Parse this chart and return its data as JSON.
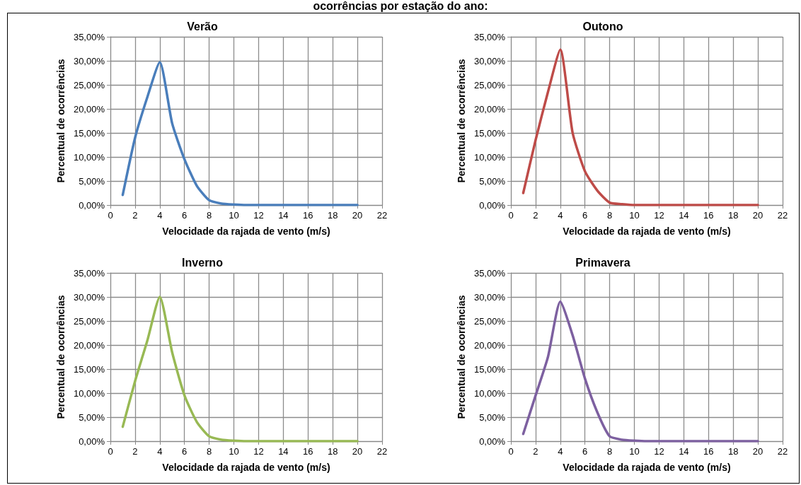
{
  "chart_data": [
    {
      "type": "line",
      "title": "Verão",
      "annotations": [
        "ocorrências por estação do ano:"
      ],
      "xlabel": "Velocidade da rajada de vento (m/s)",
      "ylabel": "Percentual de ocorrências",
      "x": [
        1,
        2,
        3,
        4,
        5,
        6,
        7,
        8,
        9,
        10,
        11,
        12,
        13,
        14,
        15,
        16,
        17,
        18,
        19,
        20
      ],
      "xlim": [
        0,
        22
      ],
      "xticks": [
        0,
        2,
        4,
        6,
        8,
        10,
        12,
        14,
        16,
        18,
        20,
        22
      ],
      "ylim": [
        0,
        35
      ],
      "yticks": [
        {
          "value": 0,
          "label": "0,00%"
        },
        {
          "value": 5,
          "label": "5,00%"
        },
        {
          "value": 10,
          "label": "10,00%"
        },
        {
          "value": 15,
          "label": "15,00%"
        },
        {
          "value": 20,
          "label": "20,00%"
        },
        {
          "value": 25,
          "label": "25,00%"
        },
        {
          "value": 30,
          "label": "30,00%"
        },
        {
          "value": 35,
          "label": "35,00%"
        }
      ],
      "grid": true,
      "marker": "none",
      "line_style": "solid",
      "series": [
        {
          "color": "#4a7ebb",
          "values": [
            2.1,
            14,
            22.5,
            29.7,
            17,
            9.5,
            4,
            1,
            0.3,
            0.1,
            0,
            0,
            0,
            0,
            0,
            0,
            0,
            0,
            0,
            0
          ]
        }
      ]
    },
    {
      "type": "line",
      "title": "Outono",
      "xlabel": "Velocidade da rajada de vento (m/s)",
      "ylabel": "Percentual de ocorrências",
      "x": [
        1,
        2,
        3,
        4,
        5,
        6,
        7,
        8,
        9,
        10,
        11,
        12,
        13,
        14,
        15,
        16,
        17,
        18,
        19,
        20
      ],
      "xlim": [
        0,
        22
      ],
      "xticks": [
        0,
        2,
        4,
        6,
        8,
        10,
        12,
        14,
        16,
        18,
        20,
        22
      ],
      "ylim": [
        0,
        35
      ],
      "yticks": [
        {
          "value": 0,
          "label": "0,00%"
        },
        {
          "value": 5,
          "label": "5,00%"
        },
        {
          "value": 10,
          "label": "10,00%"
        },
        {
          "value": 15,
          "label": "15,00%"
        },
        {
          "value": 20,
          "label": "20,00%"
        },
        {
          "value": 25,
          "label": "25,00%"
        },
        {
          "value": 30,
          "label": "30,00%"
        },
        {
          "value": 35,
          "label": "35,00%"
        }
      ],
      "grid": true,
      "marker": "none",
      "line_style": "solid",
      "series": [
        {
          "color": "#be4b48",
          "values": [
            2.5,
            13.5,
            23.5,
            32.3,
            15,
            7,
            3,
            0.5,
            0.2,
            0,
            0,
            0,
            0,
            0,
            0,
            0,
            0,
            0,
            0,
            0
          ]
        }
      ]
    },
    {
      "type": "line",
      "title": "Inverno",
      "xlabel": "Velocidade da rajada de vento (m/s)",
      "ylabel": "Percentual de ocorrências",
      "x": [
        1,
        2,
        3,
        4,
        5,
        6,
        7,
        8,
        9,
        10,
        11,
        12,
        13,
        14,
        15,
        16,
        17,
        18,
        19,
        20
      ],
      "xlim": [
        0,
        22
      ],
      "xticks": [
        0,
        2,
        4,
        6,
        8,
        10,
        12,
        14,
        16,
        18,
        20,
        22
      ],
      "ylim": [
        0,
        35
      ],
      "yticks": [
        {
          "value": 0,
          "label": "0,00%"
        },
        {
          "value": 5,
          "label": "5,00%"
        },
        {
          "value": 10,
          "label": "10,00%"
        },
        {
          "value": 15,
          "label": "15,00%"
        },
        {
          "value": 20,
          "label": "20,00%"
        },
        {
          "value": 25,
          "label": "25,00%"
        },
        {
          "value": 30,
          "label": "30,00%"
        },
        {
          "value": 35,
          "label": "35,00%"
        }
      ],
      "grid": true,
      "marker": "none",
      "line_style": "solid",
      "series": [
        {
          "color": "#98b954",
          "values": [
            3,
            12.5,
            21,
            30,
            18.5,
            9.5,
            4,
            1,
            0.3,
            0.1,
            0,
            0,
            0,
            0,
            0,
            0,
            0,
            0,
            0,
            0
          ]
        }
      ]
    },
    {
      "type": "line",
      "title": "Primavera",
      "xlabel": "Velocidade da rajada de vento (m/s)",
      "ylabel": "Percentual de ocorrências",
      "x": [
        1,
        2,
        3,
        4,
        5,
        6,
        7,
        8,
        9,
        10,
        11,
        12,
        13,
        14,
        15,
        16,
        17,
        18,
        19,
        20
      ],
      "xlim": [
        0,
        22
      ],
      "xticks": [
        0,
        2,
        4,
        6,
        8,
        10,
        12,
        14,
        16,
        18,
        20,
        22
      ],
      "ylim": [
        0,
        35
      ],
      "yticks": [
        {
          "value": 0,
          "label": "0,00%"
        },
        {
          "value": 5,
          "label": "5,00%"
        },
        {
          "value": 10,
          "label": "10,00%"
        },
        {
          "value": 15,
          "label": "15,00%"
        },
        {
          "value": 20,
          "label": "20,00%"
        },
        {
          "value": 25,
          "label": "25,00%"
        },
        {
          "value": 30,
          "label": "30,00%"
        },
        {
          "value": 35,
          "label": "35,00%"
        }
      ],
      "grid": true,
      "marker": "none",
      "line_style": "solid",
      "series": [
        {
          "color": "#7d60a0",
          "values": [
            1.5,
            9.5,
            17.5,
            29,
            22,
            13,
            6,
            1,
            0.3,
            0.1,
            0,
            0,
            0,
            0,
            0,
            0,
            0,
            0,
            0,
            0
          ]
        }
      ]
    }
  ]
}
